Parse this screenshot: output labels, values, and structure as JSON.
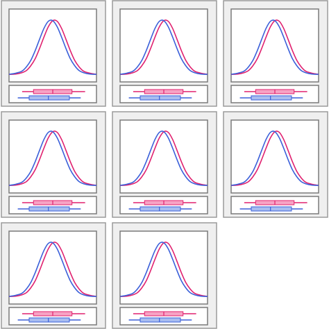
{
  "chart_data": [
    {
      "type": "density",
      "xlim": [
        0,
        100
      ],
      "ylim": [
        0,
        1
      ],
      "x": [
        0,
        5,
        10,
        15,
        20,
        25,
        30,
        35,
        40,
        45,
        50,
        55,
        60,
        65,
        70,
        75,
        80,
        85,
        90,
        95,
        100
      ],
      "series": [
        {
          "color": "#e0206e",
          "fill": "#f7a3c4",
          "values": [
            0,
            0,
            0.01,
            0.03,
            0.07,
            0.16,
            0.29,
            0.48,
            0.69,
            0.88,
            0.99,
            0.98,
            0.85,
            0.65,
            0.44,
            0.26,
            0.14,
            0.06,
            0.03,
            0.01,
            0
          ],
          "box": {
            "min": 15,
            "q1": 28,
            "median": 50,
            "q3": 72,
            "max": 87
          }
        },
        {
          "color": "#3a5fd9",
          "fill": "#a8bdf0",
          "values": [
            0,
            0.01,
            0.03,
            0.06,
            0.14,
            0.26,
            0.44,
            0.65,
            0.85,
            0.98,
            0.99,
            0.88,
            0.69,
            0.48,
            0.29,
            0.16,
            0.07,
            0.03,
            0.01,
            0,
            0
          ],
          "box": {
            "min": 10,
            "q1": 23,
            "median": 45,
            "q3": 69,
            "max": 82
          }
        }
      ]
    },
    {
      "type": "density",
      "xlim": [
        0,
        100
      ],
      "ylim": [
        0,
        1
      ],
      "x": [
        0,
        5,
        10,
        15,
        20,
        25,
        30,
        35,
        40,
        45,
        50,
        55,
        60,
        65,
        70,
        75,
        80,
        85,
        90,
        95,
        100
      ],
      "series": [
        {
          "color": "#e0206e",
          "fill": "#f7a3c4",
          "values": [
            0,
            0,
            0.01,
            0.03,
            0.07,
            0.16,
            0.29,
            0.48,
            0.69,
            0.88,
            0.99,
            0.98,
            0.85,
            0.65,
            0.44,
            0.26,
            0.14,
            0.06,
            0.03,
            0.01,
            0
          ],
          "box": {
            "min": 15,
            "q1": 28,
            "median": 50,
            "q3": 72,
            "max": 87
          }
        },
        {
          "color": "#3a5fd9",
          "fill": "#a8bdf0",
          "values": [
            0,
            0.01,
            0.03,
            0.06,
            0.14,
            0.26,
            0.44,
            0.65,
            0.85,
            0.98,
            0.99,
            0.88,
            0.69,
            0.48,
            0.29,
            0.16,
            0.07,
            0.03,
            0.01,
            0,
            0
          ],
          "box": {
            "min": 10,
            "q1": 23,
            "median": 45,
            "q3": 69,
            "max": 82
          }
        }
      ]
    },
    {
      "type": "density",
      "xlim": [
        0,
        100
      ],
      "ylim": [
        0,
        1
      ],
      "x": [
        0,
        5,
        10,
        15,
        20,
        25,
        30,
        35,
        40,
        45,
        50,
        55,
        60,
        65,
        70,
        75,
        80,
        85,
        90,
        95,
        100
      ],
      "series": [
        {
          "color": "#e0206e",
          "fill": "#f7a3c4",
          "values": [
            0,
            0,
            0.01,
            0.03,
            0.07,
            0.16,
            0.29,
            0.48,
            0.69,
            0.88,
            0.99,
            0.98,
            0.85,
            0.65,
            0.44,
            0.26,
            0.14,
            0.06,
            0.03,
            0.01,
            0
          ],
          "box": {
            "min": 15,
            "q1": 28,
            "median": 50,
            "q3": 72,
            "max": 87
          }
        },
        {
          "color": "#3a5fd9",
          "fill": "#a8bdf0",
          "values": [
            0,
            0.01,
            0.03,
            0.06,
            0.14,
            0.26,
            0.44,
            0.65,
            0.85,
            0.98,
            0.99,
            0.88,
            0.69,
            0.48,
            0.29,
            0.16,
            0.07,
            0.03,
            0.01,
            0,
            0
          ],
          "box": {
            "min": 10,
            "q1": 23,
            "median": 45,
            "q3": 69,
            "max": 82
          }
        }
      ]
    },
    {
      "type": "density",
      "xlim": [
        0,
        100
      ],
      "ylim": [
        0,
        1
      ],
      "x": [
        0,
        5,
        10,
        15,
        20,
        25,
        30,
        35,
        40,
        45,
        50,
        55,
        60,
        65,
        70,
        75,
        80,
        85,
        90,
        95,
        100
      ],
      "series": [
        {
          "color": "#e0206e",
          "fill": "#f7a3c4",
          "values": [
            0,
            0,
            0.01,
            0.03,
            0.07,
            0.16,
            0.29,
            0.48,
            0.69,
            0.88,
            0.99,
            0.98,
            0.85,
            0.65,
            0.44,
            0.26,
            0.14,
            0.06,
            0.03,
            0.01,
            0
          ],
          "box": {
            "min": 15,
            "q1": 28,
            "median": 50,
            "q3": 72,
            "max": 87
          }
        },
        {
          "color": "#3a5fd9",
          "fill": "#a8bdf0",
          "values": [
            0,
            0.01,
            0.03,
            0.06,
            0.14,
            0.26,
            0.44,
            0.65,
            0.85,
            0.98,
            0.99,
            0.88,
            0.69,
            0.48,
            0.29,
            0.16,
            0.07,
            0.03,
            0.01,
            0,
            0
          ],
          "box": {
            "min": 10,
            "q1": 23,
            "median": 45,
            "q3": 69,
            "max": 82
          }
        }
      ]
    },
    {
      "type": "density",
      "xlim": [
        0,
        100
      ],
      "ylim": [
        0,
        1
      ],
      "x": [
        0,
        5,
        10,
        15,
        20,
        25,
        30,
        35,
        40,
        45,
        50,
        55,
        60,
        65,
        70,
        75,
        80,
        85,
        90,
        95,
        100
      ],
      "series": [
        {
          "color": "#e0206e",
          "fill": "#f7a3c4",
          "values": [
            0,
            0,
            0.01,
            0.03,
            0.07,
            0.16,
            0.29,
            0.48,
            0.69,
            0.88,
            0.99,
            0.98,
            0.85,
            0.65,
            0.44,
            0.26,
            0.14,
            0.06,
            0.03,
            0.01,
            0
          ],
          "box": {
            "min": 15,
            "q1": 28,
            "median": 50,
            "q3": 72,
            "max": 87
          }
        },
        {
          "color": "#3a5fd9",
          "fill": "#a8bdf0",
          "values": [
            0,
            0.01,
            0.03,
            0.06,
            0.14,
            0.26,
            0.44,
            0.65,
            0.85,
            0.98,
            0.99,
            0.88,
            0.69,
            0.48,
            0.29,
            0.16,
            0.07,
            0.03,
            0.01,
            0,
            0
          ],
          "box": {
            "min": 10,
            "q1": 23,
            "median": 45,
            "q3": 69,
            "max": 82
          }
        }
      ]
    },
    {
      "type": "density",
      "xlim": [
        0,
        100
      ],
      "ylim": [
        0,
        1
      ],
      "x": [
        0,
        5,
        10,
        15,
        20,
        25,
        30,
        35,
        40,
        45,
        50,
        55,
        60,
        65,
        70,
        75,
        80,
        85,
        90,
        95,
        100
      ],
      "series": [
        {
          "color": "#e0206e",
          "fill": "#f7a3c4",
          "values": [
            0,
            0,
            0.01,
            0.03,
            0.07,
            0.16,
            0.29,
            0.48,
            0.69,
            0.88,
            0.99,
            0.98,
            0.85,
            0.65,
            0.44,
            0.26,
            0.14,
            0.06,
            0.03,
            0.01,
            0
          ],
          "box": {
            "min": 15,
            "q1": 28,
            "median": 50,
            "q3": 72,
            "max": 87
          }
        },
        {
          "color": "#3a5fd9",
          "fill": "#a8bdf0",
          "values": [
            0,
            0.01,
            0.03,
            0.06,
            0.14,
            0.26,
            0.44,
            0.65,
            0.85,
            0.98,
            0.99,
            0.88,
            0.69,
            0.48,
            0.29,
            0.16,
            0.07,
            0.03,
            0.01,
            0,
            0
          ],
          "box": {
            "min": 10,
            "q1": 23,
            "median": 45,
            "q3": 69,
            "max": 82
          }
        }
      ]
    },
    {
      "type": "density",
      "xlim": [
        0,
        100
      ],
      "ylim": [
        0,
        1
      ],
      "x": [
        0,
        5,
        10,
        15,
        20,
        25,
        30,
        35,
        40,
        45,
        50,
        55,
        60,
        65,
        70,
        75,
        80,
        85,
        90,
        95,
        100
      ],
      "series": [
        {
          "color": "#e0206e",
          "fill": "#f7a3c4",
          "values": [
            0,
            0,
            0.01,
            0.03,
            0.07,
            0.16,
            0.29,
            0.48,
            0.69,
            0.88,
            0.99,
            0.98,
            0.85,
            0.65,
            0.44,
            0.26,
            0.14,
            0.06,
            0.03,
            0.01,
            0
          ],
          "box": {
            "min": 15,
            "q1": 28,
            "median": 50,
            "q3": 72,
            "max": 87
          }
        },
        {
          "color": "#3a5fd9",
          "fill": "#a8bdf0",
          "values": [
            0,
            0.01,
            0.03,
            0.06,
            0.14,
            0.26,
            0.44,
            0.65,
            0.85,
            0.98,
            0.99,
            0.88,
            0.69,
            0.48,
            0.29,
            0.16,
            0.07,
            0.03,
            0.01,
            0,
            0
          ],
          "box": {
            "min": 10,
            "q1": 23,
            "median": 45,
            "q3": 69,
            "max": 82
          }
        }
      ]
    },
    {
      "type": "density",
      "xlim": [
        0,
        100
      ],
      "ylim": [
        0,
        1
      ],
      "x": [
        0,
        5,
        10,
        15,
        20,
        25,
        30,
        35,
        40,
        45,
        50,
        55,
        60,
        65,
        70,
        75,
        80,
        85,
        90,
        95,
        100
      ],
      "series": [
        {
          "color": "#e0206e",
          "fill": "#f7a3c4",
          "values": [
            0,
            0,
            0.01,
            0.03,
            0.07,
            0.16,
            0.29,
            0.48,
            0.69,
            0.88,
            0.99,
            0.98,
            0.85,
            0.65,
            0.44,
            0.26,
            0.14,
            0.06,
            0.03,
            0.01,
            0
          ],
          "box": {
            "min": 15,
            "q1": 28,
            "median": 50,
            "q3": 72,
            "max": 87
          }
        },
        {
          "color": "#3a5fd9",
          "fill": "#a8bdf0",
          "values": [
            0,
            0.01,
            0.03,
            0.06,
            0.14,
            0.26,
            0.44,
            0.65,
            0.85,
            0.98,
            0.99,
            0.88,
            0.69,
            0.48,
            0.29,
            0.16,
            0.07,
            0.03,
            0.01,
            0,
            0
          ],
          "box": {
            "min": 10,
            "q1": 23,
            "median": 45,
            "q3": 69,
            "max": 82
          }
        }
      ]
    }
  ]
}
